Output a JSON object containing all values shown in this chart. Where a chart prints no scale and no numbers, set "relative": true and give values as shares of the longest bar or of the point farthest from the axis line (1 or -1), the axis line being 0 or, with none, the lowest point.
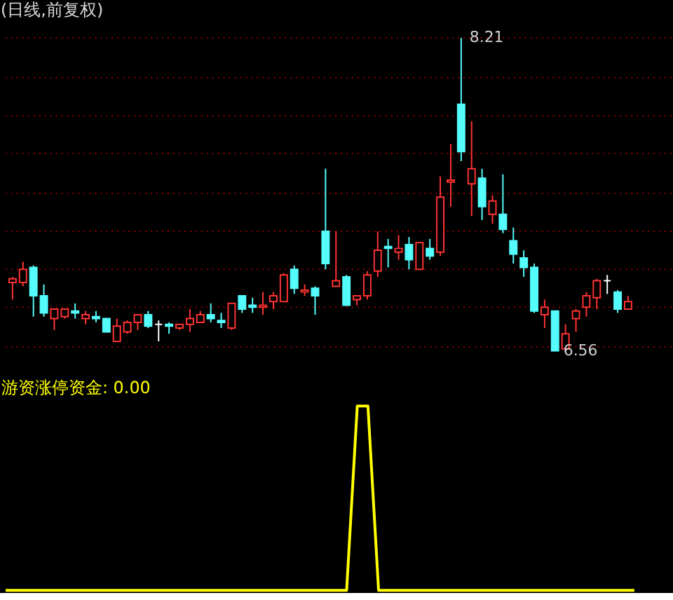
{
  "chart_data": [
    {
      "type": "candlestick",
      "title": "(日线,前复权)",
      "categories": [
        null,
        null,
        null,
        null,
        null,
        null,
        null,
        null,
        null,
        null,
        null,
        null,
        null,
        null,
        null,
        null,
        null,
        null,
        null,
        null,
        null,
        null,
        null,
        null,
        null,
        null,
        null,
        null,
        null,
        null,
        null,
        null,
        null,
        null,
        null,
        null,
        null,
        null,
        null,
        null,
        null,
        null,
        null,
        null,
        null,
        null,
        null,
        null,
        null,
        null,
        null,
        null,
        null,
        null,
        null,
        null,
        null,
        null,
        null,
        null
      ],
      "ohlc": [
        [
          6.92,
          6.95,
          6.83,
          6.94
        ],
        [
          6.92,
          7.03,
          6.9,
          6.99
        ],
        [
          7.0,
          7.01,
          6.74,
          6.85
        ],
        [
          6.85,
          6.91,
          6.74,
          6.76
        ],
        [
          6.73,
          6.78,
          6.67,
          6.78
        ],
        [
          6.74,
          6.78,
          6.73,
          6.78
        ],
        [
          6.77,
          6.81,
          6.73,
          6.76
        ],
        [
          6.73,
          6.77,
          6.7,
          6.75
        ],
        [
          6.74,
          6.77,
          6.71,
          6.73
        ],
        [
          6.73,
          6.73,
          6.66,
          6.66
        ],
        [
          6.61,
          6.73,
          6.61,
          6.69
        ],
        [
          6.66,
          6.72,
          6.65,
          6.71
        ],
        [
          6.71,
          6.75,
          6.67,
          6.75
        ],
        [
          6.75,
          6.77,
          6.68,
          6.69
        ],
        [
          6.7,
          6.72,
          6.61,
          6.7
        ],
        [
          6.7,
          6.71,
          6.65,
          6.69
        ],
        [
          6.68,
          6.7,
          6.67,
          6.7
        ],
        [
          6.7,
          6.78,
          6.66,
          6.73
        ],
        [
          6.71,
          6.77,
          6.71,
          6.75
        ],
        [
          6.75,
          6.81,
          6.71,
          6.73
        ],
        [
          6.72,
          6.76,
          6.68,
          6.71
        ],
        [
          6.68,
          6.81,
          6.67,
          6.81
        ],
        [
          6.85,
          6.85,
          6.76,
          6.78
        ],
        [
          6.8,
          6.84,
          6.76,
          6.79
        ],
        [
          6.79,
          6.87,
          6.75,
          6.8
        ],
        [
          6.82,
          6.87,
          6.78,
          6.85
        ],
        [
          6.82,
          6.97,
          6.82,
          6.96
        ],
        [
          6.99,
          7.01,
          6.86,
          6.89
        ],
        [
          6.87,
          6.91,
          6.85,
          6.88
        ],
        [
          6.89,
          6.9,
          6.75,
          6.85
        ],
        [
          7.19,
          7.52,
          6.99,
          7.02
        ],
        [
          6.9,
          7.19,
          6.9,
          6.93
        ],
        [
          6.95,
          6.96,
          6.8,
          6.8
        ],
        [
          6.83,
          6.85,
          6.8,
          6.85
        ],
        [
          6.85,
          6.98,
          6.83,
          6.96
        ],
        [
          6.98,
          7.19,
          6.95,
          7.09
        ],
        [
          7.11,
          7.15,
          7.0,
          7.1
        ],
        [
          7.08,
          7.17,
          7.04,
          7.1
        ],
        [
          7.12,
          7.16,
          6.99,
          7.04
        ],
        [
          6.99,
          7.13,
          6.99,
          7.13
        ],
        [
          7.1,
          7.15,
          7.04,
          7.06
        ],
        [
          7.08,
          7.48,
          7.06,
          7.37
        ],
        [
          7.45,
          7.65,
          7.32,
          7.46
        ],
        [
          7.86,
          8.21,
          7.56,
          7.61
        ],
        [
          7.44,
          7.77,
          7.27,
          7.52
        ],
        [
          7.47,
          7.52,
          7.25,
          7.32
        ],
        [
          7.28,
          7.38,
          7.23,
          7.35
        ],
        [
          7.28,
          7.49,
          7.18,
          7.2
        ],
        [
          7.14,
          7.21,
          7.02,
          7.07
        ],
        [
          7.05,
          7.09,
          6.95,
          7.0
        ],
        [
          7.0,
          7.02,
          6.76,
          6.77
        ],
        [
          6.75,
          6.83,
          6.68,
          6.79
        ],
        [
          6.77,
          6.77,
          6.56,
          6.56
        ],
        [
          6.57,
          6.7,
          6.57,
          6.65
        ],
        [
          6.73,
          6.78,
          6.66,
          6.77
        ],
        [
          6.79,
          6.87,
          6.74,
          6.85
        ],
        [
          6.84,
          6.94,
          6.78,
          6.93
        ],
        [
          6.93,
          6.96,
          6.86,
          6.93
        ],
        [
          6.87,
          6.88,
          6.76,
          6.78
        ],
        [
          6.78,
          6.85,
          6.78,
          6.82
        ]
      ],
      "colors": [
        "#ff3232",
        "#ff3232",
        "#54fcfc",
        "#54fcfc",
        "#ff3232",
        "#ff3232",
        "#54fcfc",
        "#ff3232",
        "#54fcfc",
        "#54fcfc",
        "#ff3232",
        "#ff3232",
        "#ff3232",
        "#54fcfc",
        "#ffffff",
        "#54fcfc",
        "#ff3232",
        "#ff3232",
        "#ff3232",
        "#54fcfc",
        "#54fcfc",
        "#ff3232",
        "#54fcfc",
        "#54fcfc",
        "#ff3232",
        "#ff3232",
        "#ff3232",
        "#54fcfc",
        "#ff3232",
        "#54fcfc",
        "#54fcfc",
        "#ff3232",
        "#54fcfc",
        "#ff3232",
        "#ff3232",
        "#ff3232",
        "#54fcfc",
        "#ff3232",
        "#54fcfc",
        "#ff3232",
        "#54fcfc",
        "#ff3232",
        "#ff3232",
        "#54fcfc",
        "#ff3232",
        "#54fcfc",
        "#ff3232",
        "#54fcfc",
        "#54fcfc",
        "#54fcfc",
        "#54fcfc",
        "#ff3232",
        "#54fcfc",
        "#ff3232",
        "#ff3232",
        "#ff3232",
        "#ff3232",
        "#ffffff",
        "#54fcfc",
        "#ff3232"
      ],
      "yticks": [
        {
          "value": 6.58,
          "label": null
        },
        {
          "value": 6.79,
          "label": null
        },
        {
          "value": 6.99,
          "label": null
        },
        {
          "value": 7.19,
          "label": null
        },
        {
          "value": 7.39,
          "label": null
        },
        {
          "value": 7.6,
          "label": null
        },
        {
          "value": 7.8,
          "label": null
        },
        {
          "value": 8.0,
          "label": null
        },
        {
          "value": 8.21,
          "label": null
        }
      ],
      "grid": "y",
      "tick_labels": false,
      "annotations": [
        "8.21",
        "6.56"
      ]
    },
    {
      "type": "line",
      "title": "游资涨停资金: 0.00",
      "relative": true,
      "categories": [
        null,
        null,
        null,
        null,
        null,
        null,
        null,
        null,
        null,
        null,
        null,
        null,
        null,
        null,
        null,
        null,
        null,
        null,
        null,
        null,
        null,
        null,
        null,
        null,
        null,
        null,
        null,
        null,
        null,
        null,
        null,
        null,
        null,
        null,
        null,
        null,
        null,
        null,
        null,
        null,
        null,
        null,
        null,
        null,
        null,
        null,
        null,
        null,
        null,
        null,
        null,
        null,
        null,
        null,
        null,
        null,
        null,
        null,
        null,
        null
      ],
      "series": [
        {
          "color": "#ffff00",
          "values": [
            0,
            0,
            0,
            0,
            0,
            0,
            0,
            0,
            0,
            0,
            0,
            0,
            0,
            0,
            0,
            0,
            0,
            0,
            0,
            0,
            0,
            0,
            0,
            0,
            0,
            0,
            0,
            0,
            0,
            0,
            0,
            0,
            0,
            1,
            1,
            0,
            0,
            0,
            0,
            0,
            0,
            0,
            0,
            0,
            0,
            0,
            0,
            0,
            0,
            0,
            0,
            0,
            0,
            0,
            0,
            0,
            0,
            0,
            0,
            0
          ]
        }
      ],
      "line_style": "solid",
      "marker": "none"
    }
  ]
}
